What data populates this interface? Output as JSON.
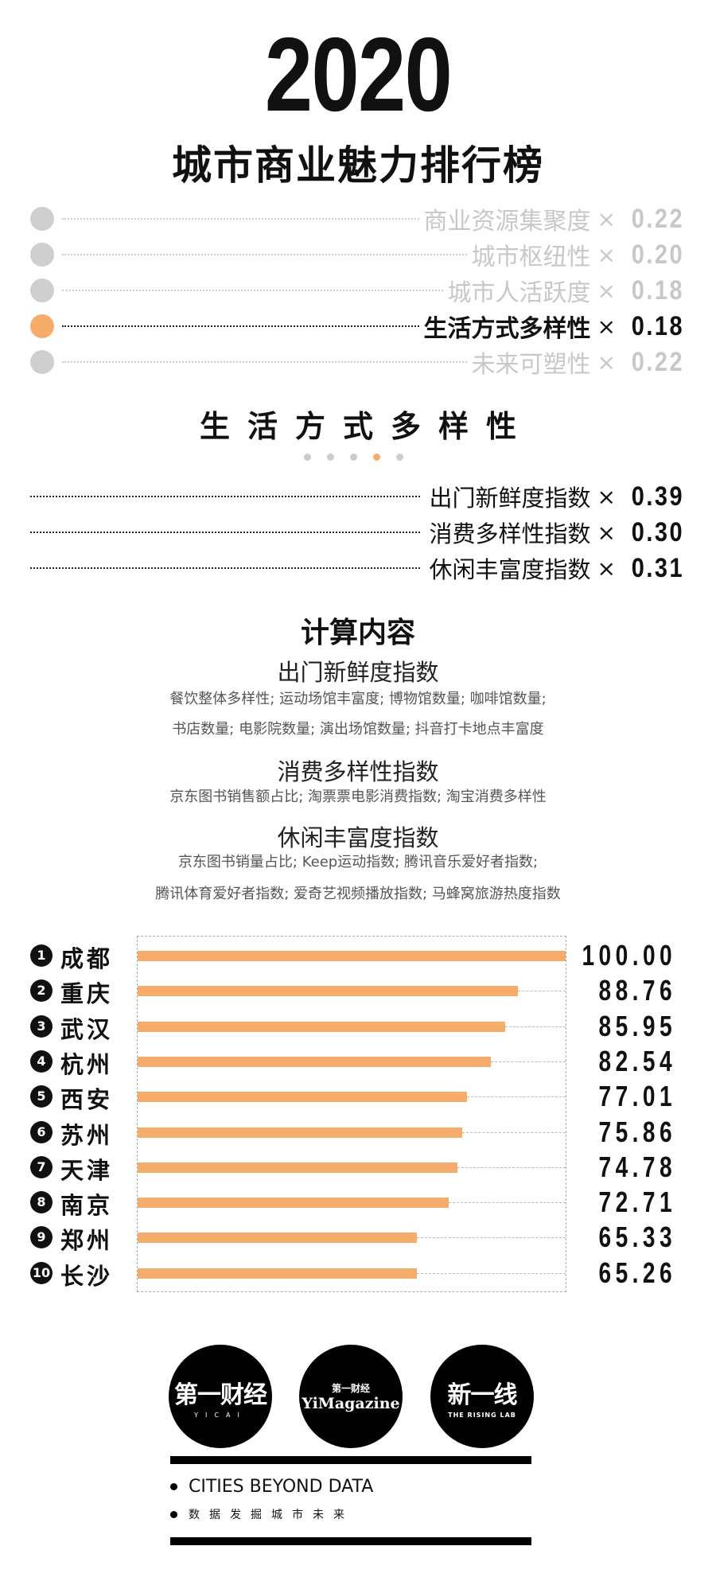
{
  "header": {
    "year": "2020",
    "title": "城市商业魅力排行榜"
  },
  "weights": [
    {
      "label": "商业资源集聚度",
      "x": "×",
      "value": "0.22",
      "active": false
    },
    {
      "label": "城市枢纽性",
      "x": "×",
      "value": "0.20",
      "active": false
    },
    {
      "label": "城市人活跃度",
      "x": "×",
      "value": "0.18",
      "active": false
    },
    {
      "label": "生活方式多样性",
      "x": "×",
      "value": "0.18",
      "active": true
    },
    {
      "label": "未来可塑性",
      "x": "×",
      "value": "0.22",
      "active": false
    }
  ],
  "section": {
    "title": "生活方式多样性",
    "page_index": 4,
    "page_count": 5
  },
  "sub_weights": [
    {
      "label": "出门新鲜度指数",
      "x": "×",
      "value": "0.39"
    },
    {
      "label": "消费多样性指数",
      "x": "×",
      "value": "0.30"
    },
    {
      "label": "休闲丰富度指数",
      "x": "×",
      "value": "0.31"
    }
  ],
  "calc": {
    "title": "计算内容",
    "items": [
      {
        "head": "出门新鲜度指数",
        "lines": [
          "餐饮整体多样性; 运动场馆丰富度; 博物馆数量; 咖啡馆数量;",
          "书店数量; 电影院数量; 演出场馆数量; 抖音打卡地点丰富度"
        ]
      },
      {
        "head": "消费多样性指数",
        "lines": [
          "京东图书销售额占比; 淘票票电影消费指数; 淘宝消费多样性"
        ]
      },
      {
        "head": "休闲丰富度指数",
        "lines": [
          "京东图书销量占比; Keep运动指数; 腾讯音乐爱好者指数;",
          "腾讯体育爱好者指数; 爱奇艺视频播放指数; 马蜂窝旅游热度指数"
        ]
      }
    ]
  },
  "chart_data": {
    "type": "bar",
    "orientation": "horizontal",
    "xlim": [
      0,
      100
    ],
    "bar_color": "#f6ad6c",
    "ranks": [
      "1",
      "2",
      "3",
      "4",
      "5",
      "6",
      "7",
      "8",
      "9",
      "10"
    ],
    "categories": [
      "成都",
      "重庆",
      "武汉",
      "杭州",
      "西安",
      "苏州",
      "天津",
      "南京",
      "郑州",
      "长沙"
    ],
    "values": [
      100.0,
      88.76,
      85.95,
      82.54,
      77.01,
      75.86,
      74.78,
      72.71,
      65.33,
      65.26
    ],
    "labels": [
      "100.00",
      "88.76",
      "85.95",
      "82.54",
      "77.01",
      "75.86",
      "74.78",
      "72.71",
      "65.33",
      "65.26"
    ]
  },
  "footer": {
    "logos": [
      {
        "main": "第一财经",
        "sub": "YICAI"
      },
      {
        "top": "第一财经",
        "main": "YiMagazine"
      },
      {
        "main": "新一线",
        "sub": "THE RISING LAB"
      }
    ],
    "tagline_en": "CITIES BEYOND DATA",
    "tagline_cn": "数据发掘城市未来"
  }
}
